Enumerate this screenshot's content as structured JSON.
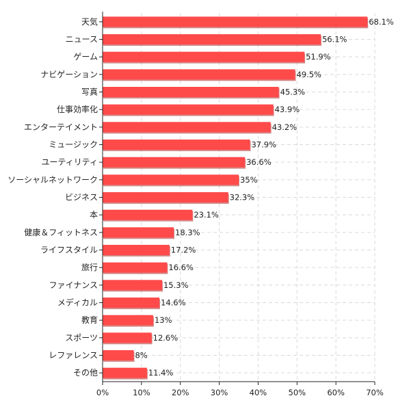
{
  "chart_data": {
    "type": "bar",
    "orientation": "horizontal",
    "title": "",
    "xlabel": "",
    "ylabel": "",
    "xlim": [
      0,
      70
    ],
    "grid": true,
    "bar_color": "#ff4a4a",
    "bar_shadow_color": "#b02a2a",
    "categories": [
      "天気",
      "ニュース",
      "ゲーム",
      "ナビゲーション",
      "写真",
      "仕事効率化",
      "エンターテイメント",
      "ミュージック",
      "ユーティリティ",
      "ソーシャルネットワーク",
      "ビジネス",
      "本",
      "健康＆フィットネス",
      "ライフスタイル",
      "旅行",
      "ファイナンス",
      "メディカル",
      "教育",
      "スポーツ",
      "レファレンス",
      "その他"
    ],
    "values": [
      68.1,
      56.1,
      51.9,
      49.5,
      45.3,
      43.9,
      43.2,
      37.9,
      36.6,
      35,
      32.3,
      23.1,
      18.3,
      17.2,
      16.6,
      15.3,
      14.6,
      13,
      12.6,
      8,
      11.4
    ],
    "value_labels": [
      "68.1%",
      "56.1%",
      "51.9%",
      "49.5%",
      "45.3%",
      "43.9%",
      "43.2%",
      "37.9%",
      "36.6%",
      "35%",
      "32.3%",
      "23.1%",
      "18.3%",
      "17.2%",
      "16.6%",
      "15.3%",
      "14.6%",
      "13%",
      "12.6%",
      "8%",
      "11.4%"
    ],
    "x_ticks": [
      0,
      10,
      20,
      30,
      40,
      50,
      60,
      70
    ],
    "x_tick_labels": [
      "0%",
      "10%",
      "20%",
      "30%",
      "40%",
      "50%",
      "60%",
      "70%"
    ]
  }
}
